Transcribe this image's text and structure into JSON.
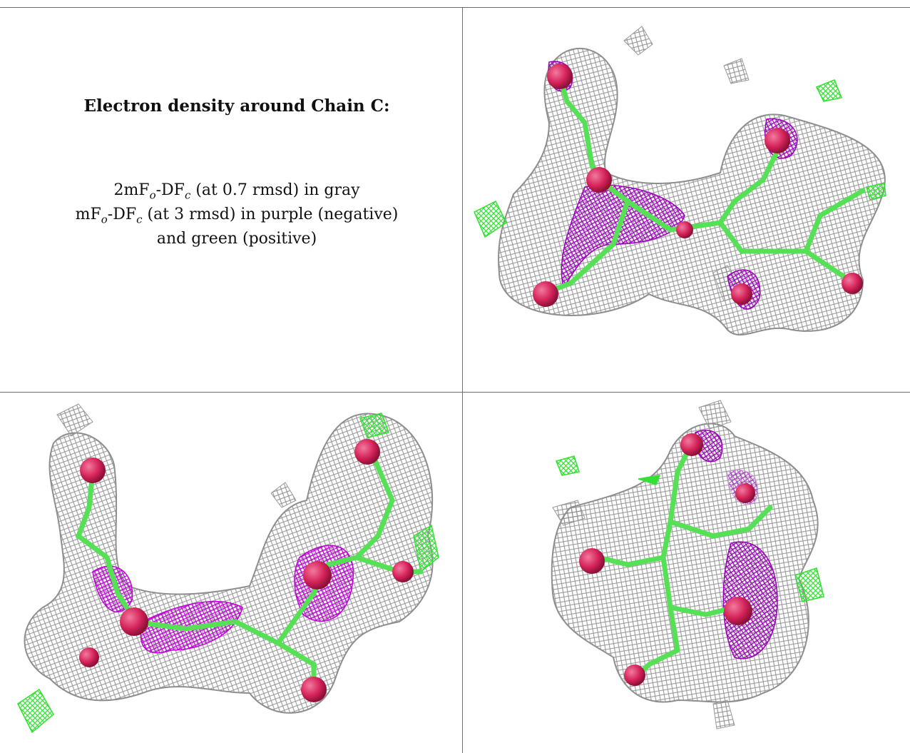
{
  "caption": {
    "title": "Electron density around Chain C:",
    "line1": {
      "a": "2mF",
      "b": "o",
      "c": "-DF",
      "d": "c",
      "e": " (at 0.7 rmsd) in gray"
    },
    "line2": {
      "a": "mF",
      "b": "o",
      "c": "-DF",
      "d": "c",
      "e": " (at 3 rmsd) in purple (negative)"
    },
    "line3": "and green (positive)"
  },
  "colors": {
    "mesh_2fofc": "#9a9a9a",
    "mesh_negative": "#b000c8",
    "mesh_positive": "#33e033",
    "atom_oxygen": "#d6245a",
    "bond": "#55e055"
  },
  "panels": [
    {
      "name": "density-view-1"
    },
    {
      "name": "density-view-2"
    },
    {
      "name": "density-view-3"
    }
  ]
}
